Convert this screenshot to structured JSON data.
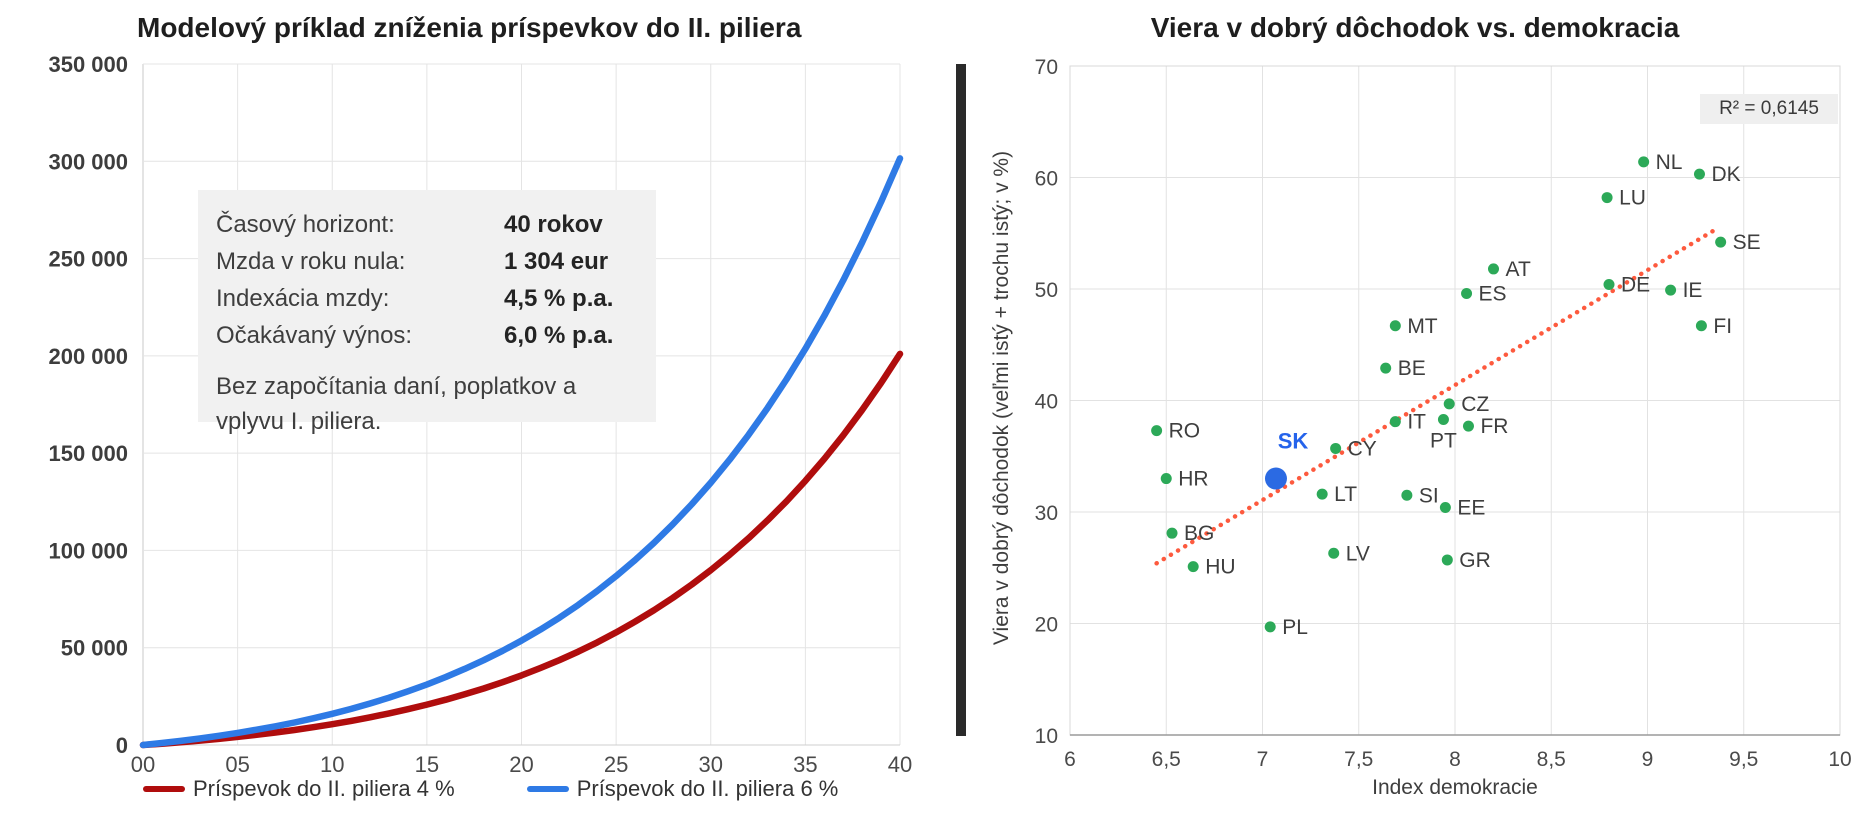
{
  "divider_color": "#2a2a2a",
  "left_chart": {
    "info_box": {
      "rows": [
        {
          "label": "Časový horizont:",
          "value": "40 rokov"
        },
        {
          "label": "Mzda v roku nula:",
          "value": "1 304 eur"
        },
        {
          "label": "Indexácia mzdy:",
          "value": "4,5 % p.a."
        },
        {
          "label": "Očakávaný výnos:",
          "value": "6,0 % p.a."
        }
      ],
      "note_lines": [
        "Bez započítania daní, poplatkov a",
        "vplyvu I. piliera."
      ]
    }
  },
  "chart_data": [
    {
      "type": "line",
      "title": "Modelový príklad zníženia príspevkov do II. piliera",
      "xlabel": "",
      "ylabel": "",
      "xlim": [
        0,
        40
      ],
      "ylim": [
        0,
        350000
      ],
      "grid": true,
      "legend_position": "bottom",
      "xticks": [
        0,
        5,
        10,
        15,
        20,
        25,
        30,
        35,
        40
      ],
      "xtick_labels": [
        "00",
        "05",
        "10",
        "15",
        "20",
        "25",
        "30",
        "35",
        "40"
      ],
      "yticks": [
        0,
        50000,
        100000,
        150000,
        200000,
        250000,
        300000,
        350000
      ],
      "ytick_labels": [
        "0",
        "50 000",
        "100 000",
        "150 000",
        "200 000",
        "250 000",
        "300 000",
        "350 000"
      ],
      "x": [
        0,
        1,
        2,
        3,
        4,
        5,
        6,
        7,
        8,
        9,
        10,
        11,
        12,
        13,
        14,
        15,
        16,
        17,
        18,
        19,
        20,
        21,
        22,
        23,
        24,
        25,
        26,
        27,
        28,
        29,
        30,
        31,
        32,
        33,
        34,
        35,
        36,
        37,
        38,
        39,
        40
      ],
      "series": [
        {
          "name": "Príspevok do II. piliera 4 %",
          "color": "#b00d0d",
          "values": [
            0,
            675,
            1421,
            2240,
            3148,
            4138,
            5226,
            6418,
            7722,
            9148,
            10695,
            12386,
            14225,
            16223,
            18394,
            20745,
            23298,
            26058,
            29045,
            32281,
            35772,
            39550,
            43616,
            48010,
            52752,
            57864,
            63355,
            69276,
            75646,
            82502,
            89872,
            97786,
            106290,
            115423,
            125223,
            135781,
            147057,
            159182,
            172177,
            186109,
            201000
          ]
        },
        {
          "name": "Príspevok do II. piliera 6 %",
          "color": "#2e7ae5",
          "values": [
            0,
            1013,
            2132,
            3360,
            4722,
            6207,
            7839,
            9627,
            11583,
            13722,
            16043,
            18579,
            21338,
            24335,
            27591,
            31118,
            34947,
            39087,
            43568,
            48422,
            53658,
            59325,
            65424,
            72015,
            79128,
            86796,
            95033,
            103914,
            113469,
            123753,
            134808,
            146679,
            159435,
            173135,
            187835,
            203672,
            220586,
            238773,
            258266,
            279164,
            301500
          ]
        }
      ]
    },
    {
      "type": "scatter",
      "title": "Viera v dobrý dôchodok vs. demokracia",
      "xlabel": "Index demokracie",
      "ylabel": "Viera v dobrý dôchodok (veľmi istý + trochu istý; v %)",
      "xlim": [
        6,
        10
      ],
      "ylim": [
        10,
        70
      ],
      "grid": true,
      "xticks": [
        6,
        6.5,
        7,
        7.5,
        8,
        8.5,
        9,
        9.5,
        10
      ],
      "xtick_labels": [
        "6",
        "6,5",
        "7",
        "7,5",
        "8",
        "8,5",
        "9",
        "9,5",
        "10"
      ],
      "yticks": [
        10,
        20,
        30,
        40,
        50,
        60,
        70
      ],
      "ytick_labels": [
        "10",
        "20",
        "30",
        "40",
        "50",
        "60",
        "70"
      ],
      "r_squared_label": "R² = 0,6145",
      "point_color": "#2ca958",
      "label_color": "#3e3e3e",
      "points": [
        {
          "code": "RO",
          "x": 6.45,
          "y": 37.3
        },
        {
          "code": "HR",
          "x": 6.5,
          "y": 33.0
        },
        {
          "code": "BG",
          "x": 6.53,
          "y": 28.1
        },
        {
          "code": "HU",
          "x": 6.64,
          "y": 25.1
        },
        {
          "code": "PL",
          "x": 7.04,
          "y": 19.7
        },
        {
          "code": "LT",
          "x": 7.31,
          "y": 31.6
        },
        {
          "code": "LV",
          "x": 7.37,
          "y": 26.3
        },
        {
          "code": "CY",
          "x": 7.38,
          "y": 35.7
        },
        {
          "code": "BE",
          "x": 7.64,
          "y": 42.9
        },
        {
          "code": "MT",
          "x": 7.69,
          "y": 46.7
        },
        {
          "code": "IT",
          "x": 7.69,
          "y": 38.1
        },
        {
          "code": "SI",
          "x": 7.75,
          "y": 31.5
        },
        {
          "code": "PT",
          "x": 7.94,
          "y": 38.3
        },
        {
          "code": "EE",
          "x": 7.95,
          "y": 30.4
        },
        {
          "code": "GR",
          "x": 7.96,
          "y": 25.7
        },
        {
          "code": "CZ",
          "x": 7.97,
          "y": 39.7
        },
        {
          "code": "ES",
          "x": 8.06,
          "y": 49.6
        },
        {
          "code": "FR",
          "x": 8.07,
          "y": 37.7
        },
        {
          "code": "AT",
          "x": 8.2,
          "y": 51.8
        },
        {
          "code": "LU",
          "x": 8.79,
          "y": 58.2
        },
        {
          "code": "DE",
          "x": 8.8,
          "y": 50.4
        },
        {
          "code": "NL",
          "x": 8.98,
          "y": 61.4
        },
        {
          "code": "IE",
          "x": 9.12,
          "y": 49.9
        },
        {
          "code": "DK",
          "x": 9.27,
          "y": 60.3
        },
        {
          "code": "FI",
          "x": 9.28,
          "y": 46.7
        },
        {
          "code": "SE",
          "x": 9.38,
          "y": 54.2
        }
      ],
      "highlight_point": {
        "code": "SK",
        "x": 7.07,
        "y": 33.0,
        "color": "#2b6ae3",
        "label_color": "#2563eb"
      },
      "trendline": {
        "x1": 6.45,
        "y1": 25.4,
        "x2": 9.34,
        "y2": 55.2,
        "color": "#fd5a3e",
        "style": "dotted"
      }
    }
  ]
}
